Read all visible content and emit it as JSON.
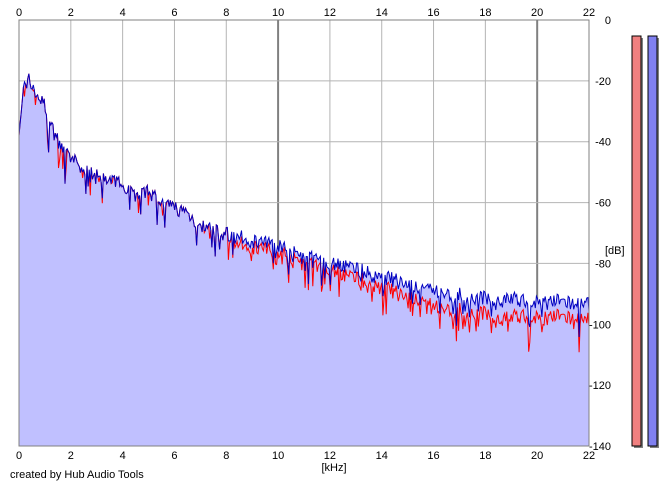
{
  "credit": "created by Hub Audio Tools",
  "colors": {
    "plot_background": "#ffffff",
    "fill": "#c0c0ff",
    "right_channel": "#ff0000",
    "left_channel": "#0000c0",
    "grid": "#b4b4b4",
    "grid_major": "#808080",
    "meter_left": "#f08080",
    "meter_right": "#8080f0"
  },
  "chart_data": {
    "type": "line",
    "title": "",
    "xlabel": "[kHz]",
    "ylabel": "[dB]",
    "xlim": [
      0,
      22
    ],
    "ylim": [
      -140,
      0
    ],
    "x_ticks": [
      0,
      2,
      4,
      6,
      8,
      10,
      12,
      14,
      16,
      18,
      20,
      22
    ],
    "y_ticks": [
      0,
      -20,
      -40,
      -60,
      -80,
      -100,
      -120,
      -140
    ],
    "grid": true,
    "legend": "none",
    "series": [
      {
        "color": "#0000c0",
        "x": [
          0.0,
          0.2,
          0.4,
          0.6,
          0.8,
          1.0,
          1.2,
          1.5,
          1.8,
          2.0,
          2.5,
          3.0,
          3.5,
          4.0,
          4.5,
          5.0,
          5.5,
          6.0,
          6.5,
          7.0,
          7.5,
          8.0,
          8.5,
          9.0,
          9.5,
          10.0,
          10.5,
          11.0,
          11.5,
          12.0,
          12.5,
          13.0,
          13.5,
          14.0,
          14.5,
          15.0,
          15.5,
          16.0,
          16.5,
          17.0,
          17.5,
          18.0,
          18.5,
          19.0,
          19.5,
          20.0,
          20.5,
          21.0,
          21.5,
          22.0
        ],
        "y": [
          -38,
          -24,
          -22,
          -26,
          -28,
          -31,
          -37,
          -42,
          -46,
          -48,
          -52,
          -54,
          -56,
          -56,
          -60,
          -59,
          -63,
          -64,
          -66,
          -70,
          -72,
          -73,
          -74,
          -75,
          -76,
          -76,
          -79,
          -80,
          -81,
          -82,
          -83,
          -84,
          -86,
          -87,
          -88,
          -90,
          -91,
          -91,
          -93,
          -93,
          -94,
          -94,
          -94,
          -94,
          -95,
          -95,
          -95,
          -95,
          -96,
          -96
        ]
      },
      {
        "color": "#ff0000",
        "x": [
          0.0,
          0.2,
          0.4,
          0.6,
          0.8,
          1.0,
          1.2,
          1.5,
          1.8,
          2.0,
          2.5,
          3.0,
          3.5,
          4.0,
          4.5,
          5.0,
          5.5,
          6.0,
          6.5,
          7.0,
          7.5,
          8.0,
          8.5,
          9.0,
          9.5,
          10.0,
          10.5,
          11.0,
          11.5,
          12.0,
          12.5,
          13.0,
          13.5,
          14.0,
          14.5,
          15.0,
          15.5,
          16.0,
          16.5,
          17.0,
          17.5,
          18.0,
          18.5,
          19.0,
          19.5,
          20.0,
          20.5,
          21.0,
          21.5,
          22.0
        ],
        "y": [
          -38,
          -24,
          -22,
          -26,
          -28,
          -31,
          -37,
          -42,
          -46,
          -48,
          -52,
          -54,
          -56,
          -56,
          -60,
          -59,
          -63,
          -64,
          -66,
          -70,
          -72,
          -73,
          -76,
          -77,
          -78,
          -78,
          -81,
          -82,
          -83,
          -84,
          -86,
          -87,
          -89,
          -90,
          -92,
          -94,
          -95,
          -96,
          -98,
          -98,
          -99,
          -99,
          -100,
          -100,
          -100,
          -100,
          -100,
          -100,
          -101,
          -101
        ]
      }
    ],
    "meters": [
      {
        "color": "#f08080",
        "level_db": 0
      },
      {
        "color": "#8080f0",
        "level_db": 0
      }
    ]
  }
}
